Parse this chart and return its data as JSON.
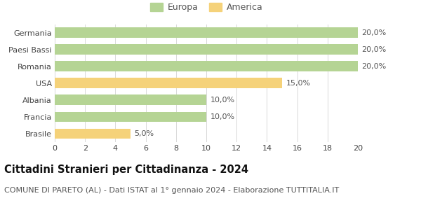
{
  "categories": [
    "Germania",
    "Paesi Bassi",
    "Romania",
    "USA",
    "Albania",
    "Francia",
    "Brasile"
  ],
  "values": [
    20.0,
    20.0,
    20.0,
    15.0,
    10.0,
    10.0,
    5.0
  ],
  "colors": [
    "#b5d494",
    "#b5d494",
    "#b5d494",
    "#f5d27a",
    "#b5d494",
    "#b5d494",
    "#f5d27a"
  ],
  "bar_labels": [
    "20,0%",
    "20,0%",
    "20,0%",
    "15,0%",
    "10,0%",
    "10,0%",
    "5,0%"
  ],
  "legend_labels": [
    "Europa",
    "America"
  ],
  "legend_colors": [
    "#b5d494",
    "#f5d27a"
  ],
  "title": "Cittadini Stranieri per Cittadinanza - 2024",
  "subtitle": "COMUNE DI PARETO (AL) - Dati ISTAT al 1° gennaio 2024 - Elaborazione TUTTITALIA.IT",
  "xlim": [
    0,
    20
  ],
  "xticks": [
    0,
    2,
    4,
    6,
    8,
    10,
    12,
    14,
    16,
    18,
    20
  ],
  "background_color": "#ffffff",
  "grid_color": "#d8d8d8",
  "bar_height": 0.62,
  "title_fontsize": 10.5,
  "subtitle_fontsize": 8,
  "label_fontsize": 8,
  "tick_fontsize": 8,
  "legend_fontsize": 9
}
